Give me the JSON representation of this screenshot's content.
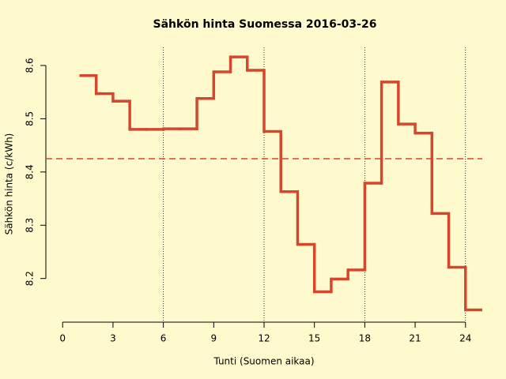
{
  "chart_data": {
    "type": "step",
    "title": "Sähkön hinta Suomessa 2016-03-26",
    "x_label": "Tunti (Suomen aikaa)",
    "y_label": "Sähkön hinta (c/kWh)",
    "x": [
      1,
      2,
      3,
      4,
      5,
      6,
      7,
      8,
      9,
      10,
      11,
      12,
      13,
      14,
      15,
      16,
      17,
      18,
      19,
      20,
      21,
      22,
      23,
      24
    ],
    "values": [
      8.581,
      8.547,
      8.533,
      8.48,
      8.48,
      8.481,
      8.481,
      8.538,
      8.588,
      8.616,
      8.591,
      8.476,
      8.363,
      8.264,
      8.175,
      8.199,
      8.216,
      8.379,
      8.569,
      8.49,
      8.473,
      8.322,
      8.221,
      8.141
    ],
    "color": "#d5462f",
    "mean": 8.425,
    "mean_color": "#d5462f",
    "vlines": [
      6,
      12,
      18,
      24
    ],
    "xlim": [
      -1,
      25
    ],
    "ylim": [
      8.118,
      8.634
    ],
    "xticks": [
      0,
      3,
      6,
      9,
      12,
      15,
      18,
      21,
      24
    ],
    "yticks": [
      8.2,
      8.3,
      8.4,
      8.5,
      8.6
    ]
  }
}
